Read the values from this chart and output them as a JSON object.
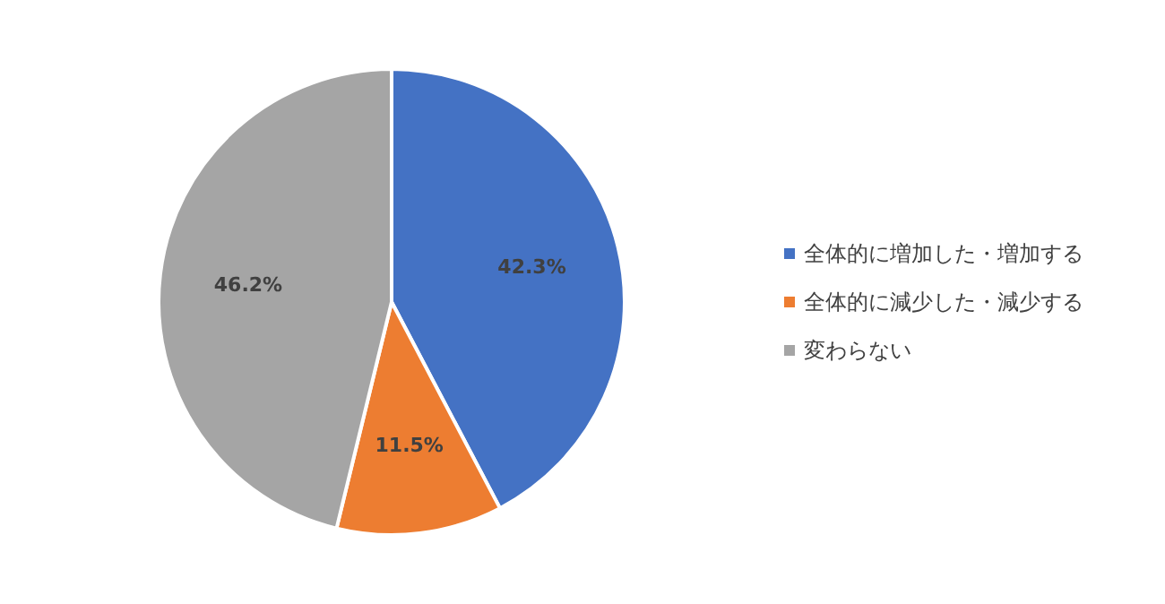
{
  "chart_data": {
    "type": "pie",
    "categories": [
      "全体的に増加した・増加する",
      "全体的に減少した・減少する",
      "変わらない"
    ],
    "values": [
      42.3,
      11.5,
      46.2
    ],
    "colors": [
      "#4472c4",
      "#ed7d31",
      "#a5a5a5"
    ],
    "value_labels": [
      "42.3%",
      "11.5%",
      "46.2%"
    ],
    "legend": "right"
  }
}
